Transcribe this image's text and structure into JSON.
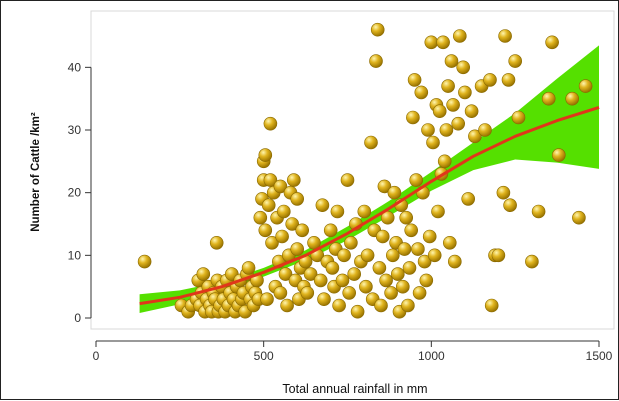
{
  "chart_data": {
    "type": "scatter",
    "title": "",
    "xlabel": "Total annual rainfall in mm",
    "ylabel": "Number of Cattle /km²",
    "xlim": [
      0,
      1500
    ],
    "ylim": [
      0,
      45
    ],
    "x_ticks": [
      "0",
      "500",
      "1000",
      "1500"
    ],
    "y_ticks": [
      "0",
      "10",
      "20",
      "30",
      "40"
    ],
    "grid": false,
    "legend": "none",
    "colors": {
      "points": "#e0b41e",
      "point_outline": "#8a6a00",
      "fit_line": "#e0361a",
      "confidence_band": "#55e000"
    },
    "series": [
      {
        "kind": "points",
        "points": [
          [
            145,
            9
          ],
          [
            255,
            2
          ],
          [
            275,
            1
          ],
          [
            285,
            2
          ],
          [
            300,
            3
          ],
          [
            305,
            6
          ],
          [
            310,
            2
          ],
          [
            315,
            4
          ],
          [
            320,
            7
          ],
          [
            325,
            1
          ],
          [
            330,
            3
          ],
          [
            335,
            5
          ],
          [
            340,
            2
          ],
          [
            345,
            1
          ],
          [
            350,
            4
          ],
          [
            355,
            3
          ],
          [
            360,
            12
          ],
          [
            362,
            6
          ],
          [
            365,
            1
          ],
          [
            370,
            2
          ],
          [
            375,
            5
          ],
          [
            380,
            3
          ],
          [
            385,
            1
          ],
          [
            390,
            6
          ],
          [
            395,
            2
          ],
          [
            400,
            4
          ],
          [
            405,
            7
          ],
          [
            410,
            3
          ],
          [
            415,
            1
          ],
          [
            420,
            5
          ],
          [
            425,
            2
          ],
          [
            430,
            6
          ],
          [
            435,
            3
          ],
          [
            440,
            4
          ],
          [
            445,
            1
          ],
          [
            450,
            7
          ],
          [
            455,
            8
          ],
          [
            460,
            3
          ],
          [
            465,
            5
          ],
          [
            470,
            2
          ],
          [
            475,
            4
          ],
          [
            480,
            6
          ],
          [
            485,
            3
          ],
          [
            490,
            16
          ],
          [
            495,
            19
          ],
          [
            500,
            22
          ],
          [
            500,
            25
          ],
          [
            505,
            14
          ],
          [
            505,
            26
          ],
          [
            510,
            3
          ],
          [
            515,
            18
          ],
          [
            520,
            31
          ],
          [
            520,
            22
          ],
          [
            525,
            12
          ],
          [
            530,
            20
          ],
          [
            535,
            5
          ],
          [
            540,
            16
          ],
          [
            545,
            9
          ],
          [
            550,
            21
          ],
          [
            550,
            4
          ],
          [
            555,
            13
          ],
          [
            560,
            17
          ],
          [
            565,
            7
          ],
          [
            570,
            2
          ],
          [
            575,
            10
          ],
          [
            580,
            20
          ],
          [
            585,
            15
          ],
          [
            590,
            22
          ],
          [
            595,
            6
          ],
          [
            600,
            11
          ],
          [
            600,
            19
          ],
          [
            605,
            3
          ],
          [
            610,
            8
          ],
          [
            615,
            14
          ],
          [
            620,
            5
          ],
          [
            625,
            9
          ],
          [
            630,
            4
          ],
          [
            640,
            7
          ],
          [
            650,
            12
          ],
          [
            660,
            10
          ],
          [
            670,
            6
          ],
          [
            675,
            18
          ],
          [
            680,
            3
          ],
          [
            690,
            9
          ],
          [
            700,
            14
          ],
          [
            705,
            8
          ],
          [
            710,
            5
          ],
          [
            715,
            11
          ],
          [
            720,
            17
          ],
          [
            725,
            2
          ],
          [
            735,
            6
          ],
          [
            740,
            10
          ],
          [
            750,
            22
          ],
          [
            755,
            4
          ],
          [
            760,
            12
          ],
          [
            770,
            7
          ],
          [
            775,
            15
          ],
          [
            780,
            1
          ],
          [
            790,
            9
          ],
          [
            800,
            17
          ],
          [
            805,
            5
          ],
          [
            810,
            10
          ],
          [
            820,
            28
          ],
          [
            825,
            3
          ],
          [
            830,
            14
          ],
          [
            835,
            41
          ],
          [
            840,
            46
          ],
          [
            845,
            8
          ],
          [
            850,
            2
          ],
          [
            855,
            13
          ],
          [
            860,
            21
          ],
          [
            865,
            6
          ],
          [
            870,
            16
          ],
          [
            880,
            4
          ],
          [
            885,
            10
          ],
          [
            890,
            20
          ],
          [
            895,
            12
          ],
          [
            900,
            7
          ],
          [
            905,
            1
          ],
          [
            910,
            18
          ],
          [
            915,
            5
          ],
          [
            920,
            11
          ],
          [
            925,
            16
          ],
          [
            930,
            2
          ],
          [
            935,
            8
          ],
          [
            940,
            14
          ],
          [
            945,
            32
          ],
          [
            950,
            38
          ],
          [
            955,
            22
          ],
          [
            960,
            11
          ],
          [
            965,
            4
          ],
          [
            970,
            36
          ],
          [
            975,
            20
          ],
          [
            980,
            9
          ],
          [
            985,
            6
          ],
          [
            990,
            30
          ],
          [
            995,
            13
          ],
          [
            1000,
            44
          ],
          [
            1005,
            28
          ],
          [
            1010,
            10
          ],
          [
            1015,
            34
          ],
          [
            1020,
            17
          ],
          [
            1025,
            33
          ],
          [
            1030,
            23
          ],
          [
            1035,
            44
          ],
          [
            1040,
            25
          ],
          [
            1045,
            30
          ],
          [
            1050,
            37
          ],
          [
            1055,
            12
          ],
          [
            1060,
            41
          ],
          [
            1065,
            34
          ],
          [
            1070,
            9
          ],
          [
            1080,
            31
          ],
          [
            1085,
            45
          ],
          [
            1095,
            40
          ],
          [
            1100,
            36
          ],
          [
            1110,
            19
          ],
          [
            1120,
            33
          ],
          [
            1130,
            29
          ],
          [
            1150,
            37
          ],
          [
            1160,
            30
          ],
          [
            1175,
            38
          ],
          [
            1180,
            2
          ],
          [
            1190,
            10
          ],
          [
            1200,
            10
          ],
          [
            1215,
            20
          ],
          [
            1220,
            45
          ],
          [
            1230,
            38
          ],
          [
            1235,
            18
          ],
          [
            1250,
            41
          ],
          [
            1260,
            32
          ],
          [
            1300,
            9
          ],
          [
            1320,
            17
          ],
          [
            1350,
            35
          ],
          [
            1360,
            44
          ],
          [
            1380,
            26
          ],
          [
            1420,
            35
          ],
          [
            1440,
            16
          ],
          [
            1460,
            37
          ]
        ]
      },
      {
        "kind": "fit",
        "x": [
          130,
          250,
          375,
          500,
          625,
          750,
          875,
          1000,
          1125,
          1250,
          1375,
          1500
        ],
        "y": [
          2.3,
          3.3,
          5.0,
          7.3,
          10.0,
          13.5,
          17.5,
          21.8,
          25.8,
          29.0,
          31.5,
          33.6
        ],
        "band_lower": [
          0.8,
          2.2,
          4.2,
          6.6,
          9.2,
          12.4,
          16.3,
          20.3,
          23.6,
          25.3,
          24.8,
          23.8
        ],
        "band_upper": [
          3.8,
          4.4,
          5.8,
          8.0,
          10.8,
          14.6,
          18.7,
          23.3,
          28.0,
          32.7,
          38.2,
          43.5
        ]
      }
    ]
  }
}
